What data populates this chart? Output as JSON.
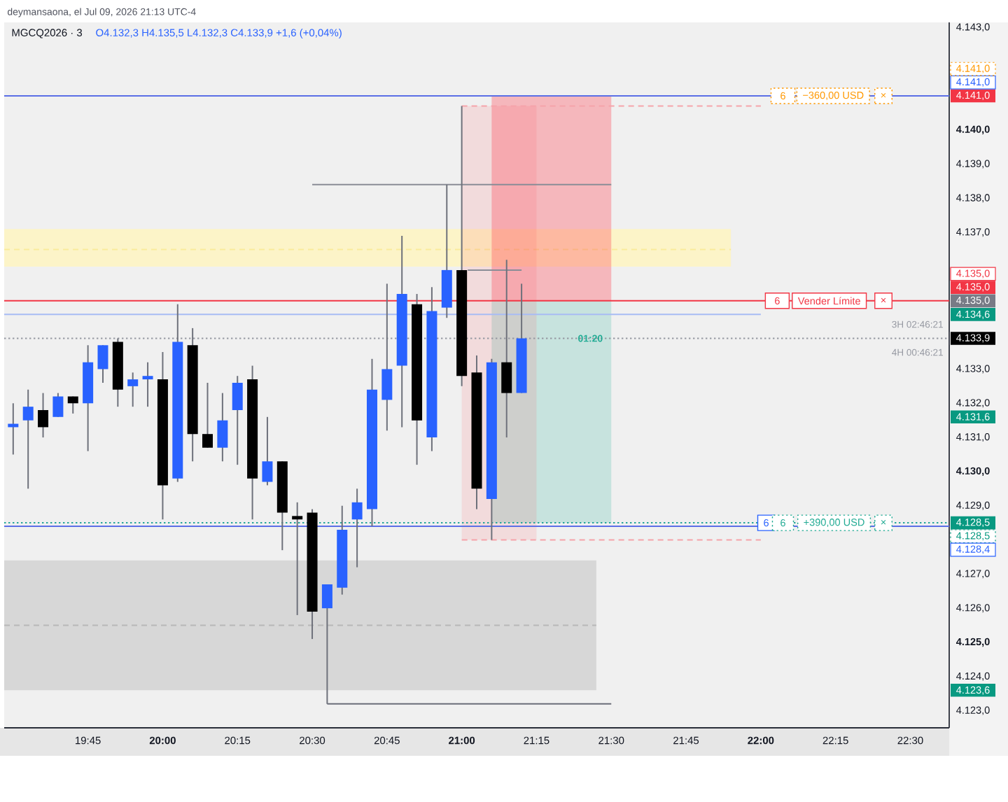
{
  "chart_data": {
    "type": "candlestick",
    "title": "MGCQ2026 · 3",
    "subtitle": "O4.132,3 H4.135,5 L4.132,3 C4.133,9 +1,6 (+0,04%)",
    "x": [
      19.5,
      19.55,
      19.6,
      19.65,
      19.7,
      19.75,
      19.8,
      19.85,
      19.9,
      19.95,
      20.0,
      20.05,
      20.1,
      20.15,
      20.2,
      20.25,
      20.3,
      20.35,
      20.4,
      20.45,
      20.5,
      20.55,
      20.6,
      20.65,
      20.7,
      20.75,
      20.8,
      20.85,
      20.9,
      20.95,
      21.0,
      21.05,
      21.1,
      21.15,
      21.2
    ],
    "ohlc": [
      [
        4131.3,
        4132.0,
        4130.5,
        4131.4
      ],
      [
        4131.5,
        4132.4,
        4129.5,
        4131.9
      ],
      [
        4131.8,
        4132.3,
        4131.0,
        4131.3
      ],
      [
        4131.6,
        4132.3,
        4131.6,
        4132.2
      ],
      [
        4132.2,
        4132.2,
        4131.7,
        4132.0
      ],
      [
        4132.0,
        4133.7,
        4130.6,
        4133.2
      ],
      [
        4133.0,
        4133.7,
        4132.6,
        4133.7
      ],
      [
        4133.8,
        4133.9,
        4131.9,
        4132.4
      ],
      [
        4132.5,
        4132.9,
        4131.9,
        4132.7
      ],
      [
        4132.7,
        4133.2,
        4131.9,
        4132.8
      ],
      [
        4132.7,
        4133.5,
        4128.6,
        4129.6
      ],
      [
        4129.8,
        4134.9,
        4129.7,
        4133.8
      ],
      [
        4133.7,
        4134.2,
        4130.3,
        4131.1
      ],
      [
        4131.1,
        4132.6,
        4130.7,
        4130.7
      ],
      [
        4130.7,
        4132.3,
        4130.3,
        4131.5
      ],
      [
        4131.8,
        4132.8,
        4130.2,
        4132.6
      ],
      [
        4132.7,
        4133.1,
        4128.6,
        4129.8
      ],
      [
        4129.7,
        4131.6,
        4129.6,
        4130.3
      ],
      [
        4130.3,
        4130.3,
        4127.7,
        4128.8
      ],
      [
        4128.7,
        4129.1,
        4125.8,
        4128.6
      ],
      [
        4128.8,
        4128.9,
        4125.1,
        4125.9
      ],
      [
        4126.0,
        4126.7,
        4123.2,
        4126.7
      ],
      [
        4126.6,
        4129.0,
        4126.4,
        4128.3
      ],
      [
        4128.6,
        4129.5,
        4127.2,
        4129.1
      ],
      [
        4128.9,
        4133.3,
        4128.4,
        4132.4
      ],
      [
        4132.1,
        4135.5,
        4131.2,
        4133.0
      ],
      [
        4133.1,
        4136.9,
        4131.3,
        4135.2
      ],
      [
        4134.9,
        4135.2,
        4130.2,
        4131.5
      ],
      [
        4131.0,
        4135.4,
        4130.6,
        4134.7
      ],
      [
        4134.8,
        4138.4,
        4134.5,
        4135.9
      ],
      [
        4135.9,
        4140.7,
        4132.5,
        4132.8
      ],
      [
        4132.9,
        4133.4,
        4128.9,
        4129.5
      ],
      [
        4129.2,
        4133.3,
        4128.0,
        4133.2
      ],
      [
        4133.2,
        4136.2,
        4131.0,
        4132.3
      ],
      [
        4132.3,
        4135.5,
        4132.3,
        4133.9
      ]
    ],
    "colors": [
      "#2962ff",
      "#2962ff",
      "#000000",
      "#2962ff",
      "#000000",
      "#2962ff",
      "#2962ff",
      "#000000",
      "#2962ff",
      "#2962ff",
      "#000000",
      "#2962ff",
      "#000000",
      "#000000",
      "#2962ff",
      "#2962ff",
      "#000000",
      "#2962ff",
      "#000000",
      "#000000",
      "#000000",
      "#2962ff",
      "#2962ff",
      "#2962ff",
      "#2962ff",
      "#2962ff",
      "#2962ff",
      "#000000",
      "#2962ff",
      "#2962ff",
      "#000000",
      "#000000",
      "#2962ff",
      "#000000",
      "#2962ff"
    ],
    "series": [
      {
        "type": "line",
        "color": "#f9eb9b",
        "x": [
          19.47,
          21.9
        ],
        "values": [
          4136.5,
          4136.5
        ],
        "lower": [
          4136.0,
          4136.0
        ],
        "upper": [
          4137.1,
          4137.1
        ],
        "line_style": "dashed"
      },
      {
        "type": "line",
        "color": "#b8b8b8",
        "x": [
          19.47,
          21.45
        ],
        "values": [
          4125.5,
          4125.5
        ],
        "lower": [
          4123.6,
          4123.6
        ],
        "upper": [
          4127.4,
          4127.4
        ],
        "line_style": "dashed"
      },
      {
        "type": "line",
        "color": "#f5b7bc",
        "x": [
          21.1,
          21.5
        ],
        "values": [
          null,
          null
        ],
        "lower": [
          4135.0,
          4135.0
        ],
        "upper": [
          4141.0,
          4141.0
        ]
      },
      {
        "type": "line",
        "color": "#c8e4df",
        "x": [
          21.1,
          21.5
        ],
        "values": [
          null,
          null
        ],
        "lower": [
          4128.5,
          4128.5
        ],
        "upper": [
          4135.0,
          4135.0
        ]
      },
      {
        "type": "line",
        "color": "#f2dbdc",
        "x": [
          21.0,
          21.25
        ],
        "values": [
          null,
          null
        ],
        "lower": [
          4128.0,
          4128.0
        ],
        "upper": [
          4140.7,
          4140.7
        ]
      },
      {
        "type": "line",
        "color": "#f5a3aa",
        "x": [
          21.0,
          22.0
        ],
        "values": [
          4140.7,
          4140.7
        ],
        "line_style": "dashed"
      },
      {
        "type": "line",
        "color": "#f5a3aa",
        "x": [
          21.0,
          22.0
        ],
        "values": [
          4128.0,
          4128.0
        ],
        "line_style": "dashed"
      },
      {
        "type": "line",
        "color": "#a8bcf4",
        "x": [
          19.47,
          22.0
        ],
        "values": [
          4134.6,
          4134.6
        ],
        "line_style": "solid"
      },
      {
        "type": "line",
        "color": "#8a8d96",
        "x": [
          20.5,
          21.5
        ],
        "values": [
          4138.4,
          4138.4
        ],
        "line_style": "solid"
      },
      {
        "type": "line",
        "color": "#8a8d96",
        "x": [
          21.02,
          21.2
        ],
        "values": [
          4135.9,
          4135.9
        ],
        "line_style": "solid"
      },
      {
        "type": "line",
        "color": "#6a6d78",
        "x": [
          20.55,
          21.5
        ],
        "values": [
          4123.2,
          4123.2
        ],
        "line_style": "solid"
      }
    ],
    "ref_lines": [
      {
        "axis": "y",
        "value": 4141.0,
        "color": "#5b6fe6",
        "line_style": "solid"
      },
      {
        "axis": "y",
        "value": 4135.0,
        "color": "#f23645",
        "line_style": "solid"
      },
      {
        "axis": "y",
        "value": 4133.9,
        "color": "#9598a1",
        "line_style": "dotted"
      },
      {
        "axis": "y",
        "value": 4128.5,
        "color": "#26a69a",
        "line_style": "dotted"
      },
      {
        "axis": "y",
        "value": 4128.4,
        "color": "#5b6fe6",
        "line_style": "solid"
      }
    ],
    "annotations": [
      "deymansaona, el Jul 09, 2026 21:13 UTC-4",
      "3H 02:46:21",
      "4H 00:46:21",
      {
        "text": "6",
        "x": 22.074,
        "y": 4141.0
      },
      {
        "text": "−360,00 USD",
        "x": 22.242,
        "y": 4141.0
      },
      {
        "text": "×",
        "x": 22.41,
        "y": 4141.0
      },
      {
        "text": "6",
        "x": 22.055,
        "y": 4135.0
      },
      {
        "text": "Vender Límite",
        "x": 22.229,
        "y": 4135.0
      },
      {
        "text": "×",
        "x": 22.41,
        "y": 4135.0
      },
      {
        "text": "6",
        "x": 22.018,
        "y": 4128.5
      },
      {
        "text": "6",
        "x": 22.074,
        "y": 4128.5
      },
      {
        "text": "+390,00 USD",
        "x": 22.245,
        "y": 4128.5
      },
      {
        "text": "×",
        "x": 22.41,
        "y": 4128.5
      },
      {
        "text": "01:20",
        "x": 21.43,
        "y": 4133.9
      },
      {
        "text": "4.141,0",
        "x": 22.63,
        "y": 4141.0
      },
      {
        "text": "4.141,0",
        "x": 22.63,
        "y": 4141.0
      },
      {
        "text": "4.141,0",
        "x": 22.63,
        "y": 4141.0
      },
      {
        "text": "4.135,0",
        "x": 22.63,
        "y": 4135.0
      },
      {
        "text": "4.135,0",
        "x": 22.63,
        "y": 4135.0
      },
      {
        "text": "4.135,0",
        "x": 22.63,
        "y": 4135.0
      },
      {
        "text": "4.133,9",
        "x": 22.63,
        "y": 4133.9
      },
      {
        "text": "4.128,5",
        "x": 22.63,
        "y": 4128.5
      },
      {
        "text": "4.128,5",
        "x": 22.63,
        "y": 4128.5
      },
      {
        "text": "4.128,4",
        "x": 22.63,
        "y": 4128.4
      }
    ],
    "xlim": [
      19.47,
      22.63
    ],
    "ylim": [
      4122.5,
      4143.15
    ],
    "xticks": [
      {
        "value": 19.75,
        "label": "19:45"
      },
      {
        "value": 20,
        "label": "20:00"
      },
      {
        "value": 20.25,
        "label": "20:15"
      },
      {
        "value": 20.5,
        "label": "20:30"
      },
      {
        "value": 20.75,
        "label": "20:45"
      },
      {
        "value": 21,
        "label": "21:00"
      },
      {
        "value": 21.25,
        "label": "21:15"
      },
      {
        "value": 21.5,
        "label": "21:30"
      },
      {
        "value": 21.75,
        "label": "21:45"
      },
      {
        "value": 22,
        "label": "22:00"
      },
      {
        "value": 22.25,
        "label": "22:15"
      },
      {
        "value": 22.5,
        "label": "22:30"
      }
    ],
    "yticks": [
      {
        "value": 4123,
        "label": "4.123,0"
      },
      {
        "value": 4123.6,
        "label": "4.123,6"
      },
      {
        "value": 4124,
        "label": "4.124,0"
      },
      {
        "value": 4125,
        "label": "4.125,0"
      },
      {
        "value": 4126,
        "label": "4.126,0"
      },
      {
        "value": 4127,
        "label": "4.127,0"
      },
      {
        "value": 4129,
        "label": "4.129,0"
      },
      {
        "value": 4130,
        "label": "4.130,0"
      },
      {
        "value": 4131,
        "label": "4.131,0"
      },
      {
        "value": 4131.6,
        "label": "4.131,6"
      },
      {
        "value": 4132,
        "label": "4.132,0"
      },
      {
        "value": 4133,
        "label": "4.133,0"
      },
      {
        "value": 4134.6,
        "label": "4.134,6"
      },
      {
        "value": 4137,
        "label": "4.137,0"
      },
      {
        "value": 4138,
        "label": "4.138,0"
      },
      {
        "value": 4139,
        "label": "4.139,0"
      },
      {
        "value": 4140,
        "label": "4.140,0"
      },
      {
        "value": 4143,
        "label": "4.143,0"
      }
    ]
  }
}
